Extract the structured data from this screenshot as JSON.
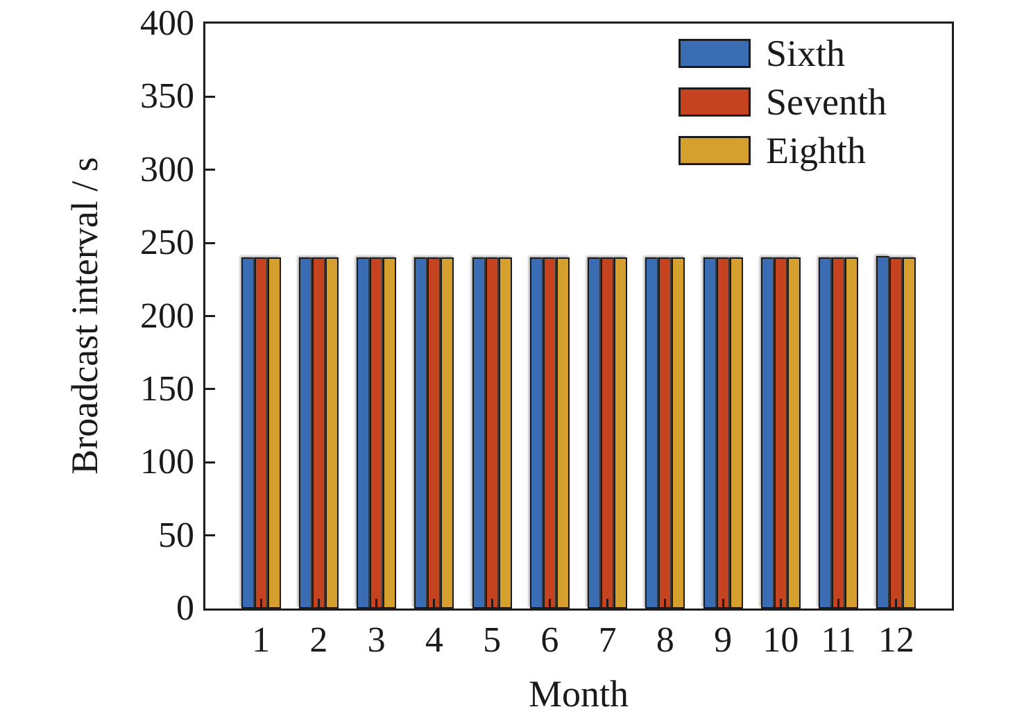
{
  "chart_data": {
    "type": "bar",
    "title": "",
    "xlabel": "Month",
    "ylabel": "Broadcast interval / s",
    "categories": [
      "1",
      "2",
      "3",
      "4",
      "5",
      "6",
      "7",
      "8",
      "9",
      "10",
      "11",
      "12"
    ],
    "series": [
      {
        "name": "Sixth",
        "color": "#3B6DB4",
        "values": [
          240,
          240,
          240,
          240,
          240,
          240,
          240,
          240,
          240,
          240,
          240,
          241
        ]
      },
      {
        "name": "Seventh",
        "color": "#C5431F",
        "values": [
          240,
          240,
          240,
          240,
          240,
          240,
          240,
          240,
          240,
          240,
          240,
          240
        ]
      },
      {
        "name": "Eighth",
        "color": "#D5A02D",
        "values": [
          240,
          240,
          240,
          240,
          240,
          240,
          240,
          240,
          240,
          240,
          240,
          240
        ]
      }
    ],
    "ylim": [
      0,
      400
    ],
    "ytick_step": 50,
    "yticks": [
      0,
      50,
      100,
      150,
      200,
      250,
      300,
      350,
      400
    ],
    "grid": false,
    "legend_position": "upper right",
    "bar_edge_color": "#1a1a1a",
    "frame_color": "#1c1c1c",
    "text_color": "#1a1a1a"
  }
}
